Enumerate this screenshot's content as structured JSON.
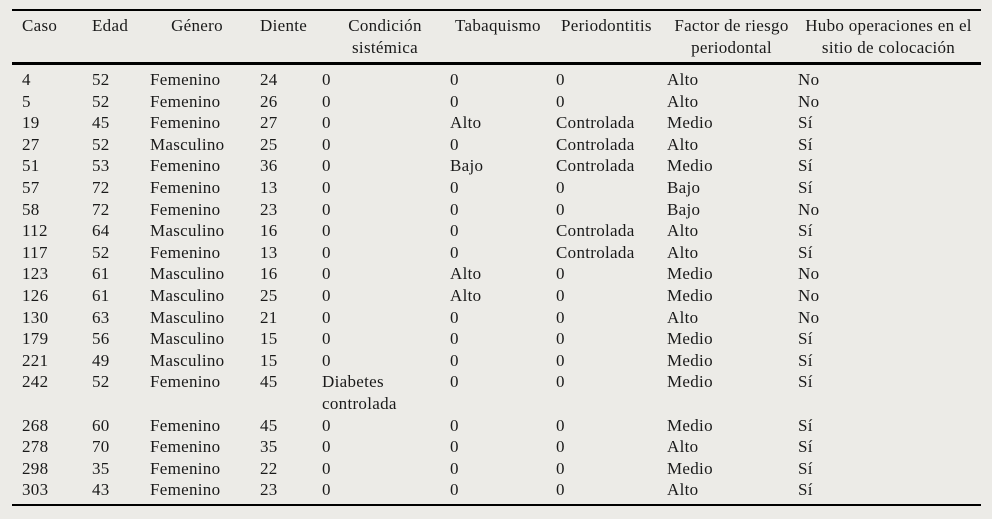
{
  "colors": {
    "background": "#ecebe7",
    "text": "#1a1a1a",
    "rule": "#000000"
  },
  "table": {
    "columns": [
      {
        "id": "caso",
        "label": "Caso"
      },
      {
        "id": "edad",
        "label": "Edad"
      },
      {
        "id": "genero",
        "label": "Género"
      },
      {
        "id": "diente",
        "label": "Diente"
      },
      {
        "id": "condicion-sistemica",
        "label": "Condición sistémica"
      },
      {
        "id": "tabaquismo",
        "label": "Tabaquismo"
      },
      {
        "id": "periodontitis",
        "label": "Periodontitis"
      },
      {
        "id": "factor-riesgo-periodontal",
        "label": "Factor de riesgo periodontal"
      },
      {
        "id": "operaciones-sitio-colocacion",
        "label": "Hubo operaciones en el sitio de colocación"
      }
    ],
    "rows": [
      [
        "4",
        "52",
        "Femenino",
        "24",
        "0",
        "0",
        "0",
        "Alto",
        "No"
      ],
      [
        "5",
        "52",
        "Femenino",
        "26",
        "0",
        "0",
        "0",
        "Alto",
        "No"
      ],
      [
        "19",
        "45",
        "Femenino",
        "27",
        "0",
        "Alto",
        "Controlada",
        "Medio",
        "Sí"
      ],
      [
        "27",
        "52",
        "Masculino",
        "25",
        "0",
        "0",
        "Controlada",
        "Alto",
        "Sí"
      ],
      [
        "51",
        "53",
        "Femenino",
        "36",
        "0",
        "Bajo",
        "Controlada",
        "Medio",
        "Sí"
      ],
      [
        "57",
        "72",
        "Femenino",
        "13",
        "0",
        "0",
        "0",
        "Bajo",
        "Sí"
      ],
      [
        "58",
        "72",
        "Femenino",
        "23",
        "0",
        "0",
        "0",
        "Bajo",
        "No"
      ],
      [
        "112",
        "64",
        "Masculino",
        "16",
        "0",
        "0",
        "Controlada",
        "Alto",
        "Sí"
      ],
      [
        "117",
        "52",
        "Femenino",
        "13",
        "0",
        "0",
        "Controlada",
        "Alto",
        "Sí"
      ],
      [
        "123",
        "61",
        "Masculino",
        "16",
        "0",
        "Alto",
        "0",
        "Medio",
        "No"
      ],
      [
        "126",
        "61",
        "Masculino",
        "25",
        "0",
        "Alto",
        "0",
        "Medio",
        "No"
      ],
      [
        "130",
        "63",
        "Masculino",
        "21",
        "0",
        "0",
        "0",
        "Alto",
        "No"
      ],
      [
        "179",
        "56",
        "Masculino",
        "15",
        "0",
        "0",
        "0",
        "Medio",
        "Sí"
      ],
      [
        "221",
        "49",
        "Masculino",
        "15",
        "0",
        "0",
        "0",
        "Medio",
        "Sí"
      ],
      [
        "242",
        "52",
        "Femenino",
        "45",
        "Diabetes controlada",
        "0",
        "0",
        "Medio",
        "Sí"
      ],
      [
        "268",
        "60",
        "Femenino",
        "45",
        "0",
        "0",
        "0",
        "Medio",
        "Sí"
      ],
      [
        "278",
        "70",
        "Femenino",
        "35",
        "0",
        "0",
        "0",
        "Alto",
        "Sí"
      ],
      [
        "298",
        "35",
        "Femenino",
        "22",
        "0",
        "0",
        "0",
        "Medio",
        "Sí"
      ],
      [
        "303",
        "43",
        "Femenino",
        "23",
        "0",
        "0",
        "0",
        "Alto",
        "Sí"
      ]
    ]
  }
}
